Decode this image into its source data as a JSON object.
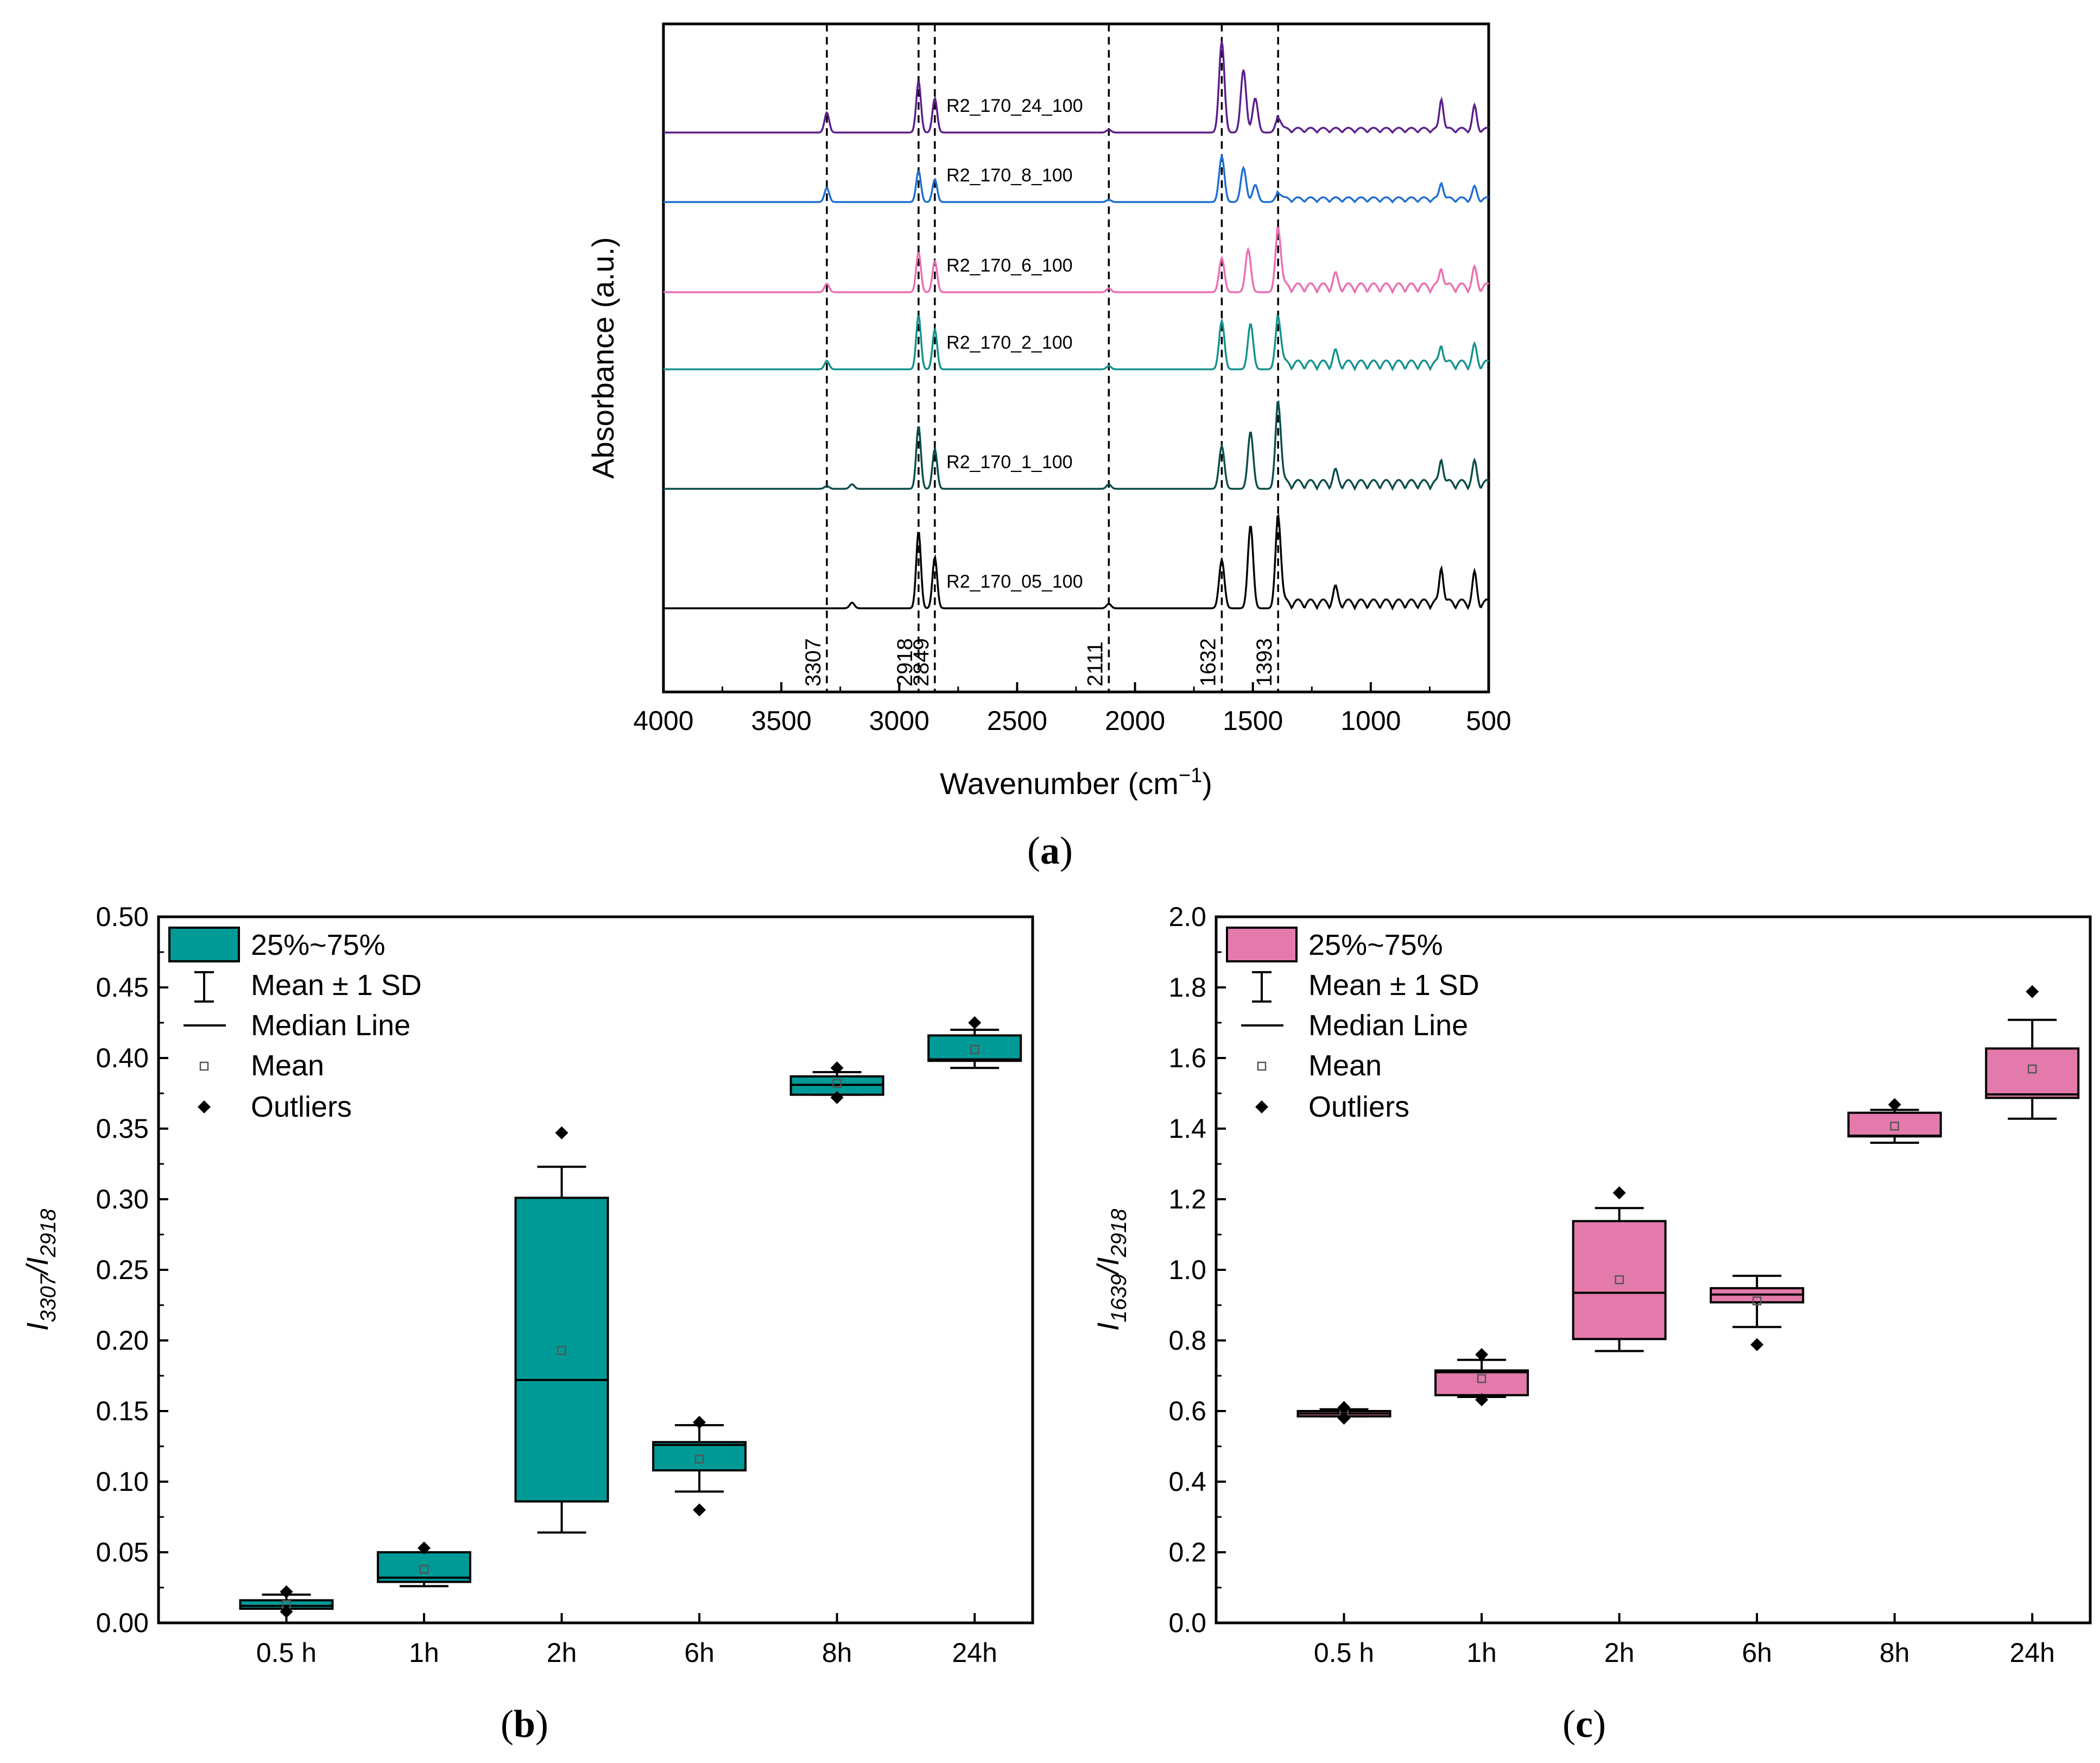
{
  "chart_data": [
    {
      "id": "a",
      "type": "line",
      "panel_label": "a",
      "xlabel": "Wavenumber (cm",
      "xlabel_sup": "−1",
      "xlabel_close": ")",
      "ylabel": "Absorbance (a.u.)",
      "xlim": [
        4000,
        500
      ],
      "x_ticks": [
        4000,
        3500,
        3000,
        2500,
        2000,
        1500,
        1000,
        500
      ],
      "reference_lines": [
        {
          "x": 3307,
          "label": "3307"
        },
        {
          "x": 2918,
          "label": "2918"
        },
        {
          "x": 2849,
          "label": "2849"
        },
        {
          "x": 2111,
          "label": "2111"
        },
        {
          "x": 1632,
          "label": "1632"
        },
        {
          "x": 1393,
          "label": "1393"
        }
      ],
      "series": [
        {
          "name": "R2_170_24_100",
          "color": "#5b1f8c",
          "offset": 5,
          "peaks": [
            [
              3307,
              0.35
            ],
            [
              2918,
              0.9
            ],
            [
              2849,
              0.6
            ],
            [
              2111,
              0.05
            ],
            [
              1632,
              1.6
            ],
            [
              1540,
              1.1
            ],
            [
              1490,
              0.6
            ],
            [
              1393,
              0.25
            ],
            [
              700,
              0.55
            ],
            [
              560,
              0.4
            ]
          ]
        },
        {
          "name": "R2_170_8_100",
          "color": "#1f6fd1",
          "offset": 4,
          "peaks": [
            [
              3307,
              0.25
            ],
            [
              2918,
              0.55
            ],
            [
              2849,
              0.4
            ],
            [
              2111,
              0.04
            ],
            [
              1632,
              0.8
            ],
            [
              1540,
              0.6
            ],
            [
              1490,
              0.3
            ],
            [
              1393,
              0.15
            ],
            [
              700,
              0.3
            ],
            [
              560,
              0.2
            ]
          ]
        },
        {
          "name": "R2_170_6_100",
          "color": "#ea6fb1",
          "offset": 3,
          "peaks": [
            [
              3307,
              0.15
            ],
            [
              2918,
              0.7
            ],
            [
              2849,
              0.55
            ],
            [
              2111,
              0.07
            ],
            [
              1632,
              0.6
            ],
            [
              1520,
              0.75
            ],
            [
              1393,
              1.1
            ],
            [
              1150,
              0.2
            ],
            [
              700,
              0.35
            ],
            [
              560,
              0.3
            ]
          ]
        },
        {
          "name": "R2_170_2_100",
          "color": "#16938e",
          "offset": 2,
          "peaks": [
            [
              3307,
              0.15
            ],
            [
              2918,
              0.95
            ],
            [
              2849,
              0.7
            ],
            [
              2111,
              0.06
            ],
            [
              1632,
              0.85
            ],
            [
              1510,
              0.8
            ],
            [
              1393,
              0.9
            ],
            [
              1150,
              0.2
            ],
            [
              700,
              0.35
            ],
            [
              560,
              0.3
            ]
          ]
        },
        {
          "name": "R2_170_1_100",
          "color": "#0b4e4a",
          "offset": 1,
          "peaks": [
            [
              3307,
              0.05
            ],
            [
              3200,
              0.08
            ],
            [
              2918,
              1.1
            ],
            [
              2849,
              0.7
            ],
            [
              2111,
              0.08
            ],
            [
              1632,
              0.75
            ],
            [
              1510,
              1.0
            ],
            [
              1393,
              1.5
            ],
            [
              1150,
              0.2
            ],
            [
              700,
              0.45
            ],
            [
              560,
              0.35
            ]
          ]
        },
        {
          "name": "R2_170_05_100",
          "color": "#000000",
          "offset": 0,
          "peaks": [
            [
              3200,
              0.1
            ],
            [
              2918,
              1.35
            ],
            [
              2849,
              0.9
            ],
            [
              2111,
              0.08
            ],
            [
              1632,
              0.85
            ],
            [
              1510,
              1.45
            ],
            [
              1393,
              1.6
            ],
            [
              1150,
              0.25
            ],
            [
              700,
              0.65
            ],
            [
              560,
              0.5
            ]
          ]
        }
      ]
    },
    {
      "id": "b",
      "type": "box",
      "panel_label": "b",
      "ylabel_main": "I",
      "ylabel_sub1": "3307",
      "ylabel_slash": "/I",
      "ylabel_sub2": "2918",
      "ylim": [
        0.0,
        0.5
      ],
      "y_ticks": [
        "0.00",
        "0.05",
        "0.10",
        "0.15",
        "0.20",
        "0.25",
        "0.30",
        "0.35",
        "0.40",
        "0.45",
        "0.50"
      ],
      "categories": [
        "0.5 h",
        "1h",
        "2h",
        "6h",
        "8h",
        "24h"
      ],
      "fill": "#009a96",
      "boxes": [
        {
          "q1": 0.01,
          "q3": 0.016,
          "median": 0.012,
          "mean": 0.013,
          "wlow": 0.01,
          "whigh": 0.02,
          "outliers": [
            0.022,
            0.008
          ]
        },
        {
          "q1": 0.029,
          "q3": 0.05,
          "median": 0.032,
          "mean": 0.038,
          "wlow": 0.026,
          "whigh": 0.05,
          "outliers": [
            0.053
          ]
        },
        {
          "q1": 0.086,
          "q3": 0.301,
          "median": 0.172,
          "mean": 0.193,
          "wlow": 0.064,
          "whigh": 0.323,
          "outliers": [
            0.347
          ]
        },
        {
          "q1": 0.108,
          "q3": 0.128,
          "median": 0.126,
          "mean": 0.116,
          "wlow": 0.093,
          "whigh": 0.14,
          "outliers": [
            0.142,
            0.08
          ]
        },
        {
          "q1": 0.374,
          "q3": 0.387,
          "median": 0.381,
          "mean": 0.382,
          "wlow": 0.374,
          "whigh": 0.39,
          "outliers": [
            0.393,
            0.372
          ]
        },
        {
          "q1": 0.398,
          "q3": 0.416,
          "median": 0.399,
          "mean": 0.406,
          "wlow": 0.393,
          "whigh": 0.42,
          "outliers": [
            0.425
          ]
        }
      ],
      "legend": {
        "box": "25%~75%",
        "whisker": "Mean ± 1 SD",
        "median": "Median Line",
        "mean": "Mean",
        "outliers": "Outliers"
      }
    },
    {
      "id": "c",
      "type": "box",
      "panel_label": "c",
      "ylabel_main": "I",
      "ylabel_sub1": "1639",
      "ylabel_slash": "/I",
      "ylabel_sub2": "2918",
      "ylim": [
        0.0,
        2.0
      ],
      "y_ticks": [
        "0.0",
        "0.2",
        "0.4",
        "0.6",
        "0.8",
        "1.0",
        "1.2",
        "1.4",
        "1.6",
        "1.8",
        "2.0"
      ],
      "categories": [
        "0.5 h",
        "1h",
        "2h",
        "6h",
        "8h",
        "24h"
      ],
      "fill": "#e47aab",
      "boxes": [
        {
          "q1": 0.585,
          "q3": 0.6,
          "median": 0.593,
          "mean": 0.594,
          "wlow": 0.585,
          "whigh": 0.605,
          "outliers": [
            0.61,
            0.58
          ]
        },
        {
          "q1": 0.645,
          "q3": 0.715,
          "median": 0.71,
          "mean": 0.692,
          "wlow": 0.64,
          "whigh": 0.745,
          "outliers": [
            0.76,
            0.632
          ]
        },
        {
          "q1": 0.804,
          "q3": 1.138,
          "median": 0.935,
          "mean": 0.972,
          "wlow": 0.77,
          "whigh": 1.175,
          "outliers": [
            1.218
          ]
        },
        {
          "q1": 0.908,
          "q3": 0.948,
          "median": 0.93,
          "mean": 0.912,
          "wlow": 0.838,
          "whigh": 0.983,
          "outliers": [
            0.788
          ]
        },
        {
          "q1": 1.378,
          "q3": 1.445,
          "median": 1.38,
          "mean": 1.407,
          "wlow": 1.36,
          "whigh": 1.453,
          "outliers": [
            1.468
          ]
        },
        {
          "q1": 1.487,
          "q3": 1.627,
          "median": 1.497,
          "mean": 1.569,
          "wlow": 1.428,
          "whigh": 1.708,
          "outliers": [
            1.788
          ]
        }
      ],
      "legend": {
        "box": "25%~75%",
        "whisker": "Mean ± 1 SD",
        "median": "Median Line",
        "mean": "Mean",
        "outliers": "Outliers"
      }
    }
  ]
}
